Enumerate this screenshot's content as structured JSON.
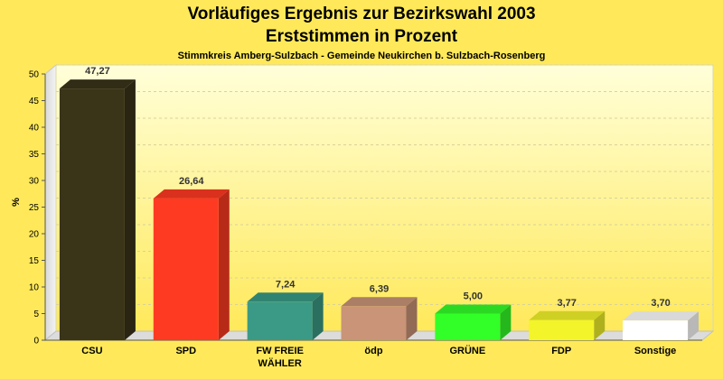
{
  "chart_data": {
    "type": "bar",
    "title": "Vorläufiges Ergebnis zur Bezirkswahl 2003",
    "title_line2": "Erststimmen in Prozent",
    "subtitle": "Stimmkreis Amberg-Sulzbach - Gemeinde Neukirchen b. Sulzbach-Rosenberg",
    "ylabel": "%",
    "ylim": [
      0,
      50
    ],
    "yticks": [
      "0",
      "5",
      "10",
      "15",
      "20",
      "25",
      "30",
      "35",
      "40",
      "45",
      "50"
    ],
    "grid": true,
    "categories": [
      [
        "CSU"
      ],
      [
        "SPD"
      ],
      [
        "FW FREIE",
        "WÄHLER"
      ],
      [
        "ödp"
      ],
      [
        "GRÜNE"
      ],
      [
        "FDP"
      ],
      [
        "Sonstige"
      ]
    ],
    "values": [
      47.27,
      26.64,
      7.24,
      6.39,
      5.0,
      3.77,
      3.7
    ],
    "value_labels": [
      "47,27",
      "26,64",
      "7,24",
      "6,39",
      "5,00",
      "3,77",
      "3,70"
    ],
    "colors": [
      "#3a3419",
      "#ff3a22",
      "#3a9a85",
      "#c99478",
      "#33ff28",
      "#f3f52a",
      "#ffffff"
    ]
  }
}
